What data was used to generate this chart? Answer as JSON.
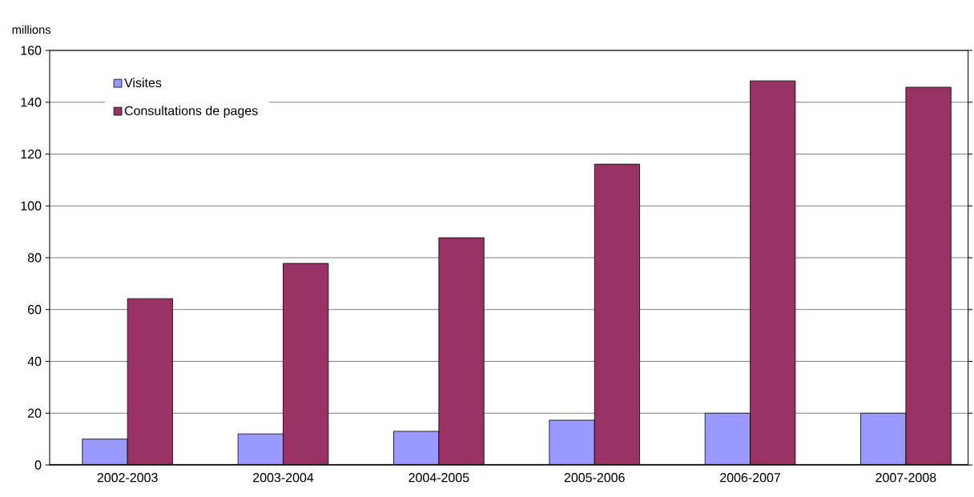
{
  "chart_data": {
    "type": "bar",
    "ylabel": "millions",
    "categories": [
      "2002-2003",
      "2003-2004",
      "2004-2005",
      "2005-2006",
      "2006-2007",
      "2007-2008"
    ],
    "series": [
      {
        "name": "Visites",
        "color": "#9999ff",
        "values": [
          10,
          12,
          13,
          17.3,
          20,
          20
        ]
      },
      {
        "name": "Consultations de pages",
        "color": "#993366",
        "values": [
          64.2,
          77.8,
          87.7,
          116.1,
          148.3,
          145.8
        ]
      }
    ],
    "ylim": [
      0,
      160
    ],
    "yticks": [
      0,
      20,
      40,
      60,
      80,
      100,
      120,
      140,
      160
    ],
    "grid": "y",
    "legend": "top left"
  }
}
